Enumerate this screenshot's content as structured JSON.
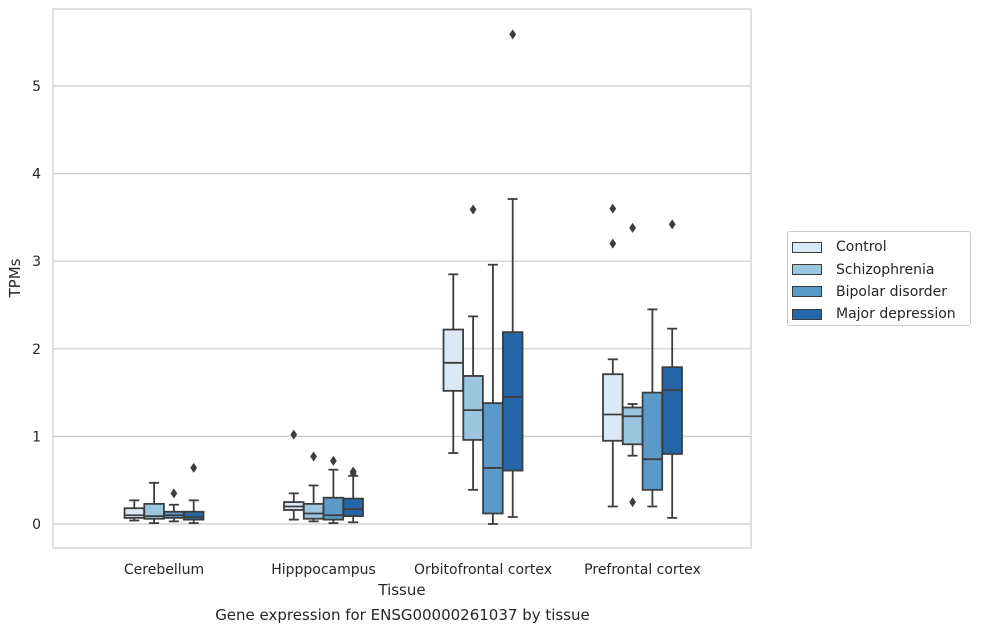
{
  "chart_data": {
    "type": "box",
    "title": "Gene expression for ENSG00000261037 by tissue",
    "xlabel": "Tissue",
    "ylabel": "TPMs",
    "ylim": [
      -0.27,
      5.9
    ],
    "yticks": [
      0,
      1,
      2,
      3,
      4,
      5
    ],
    "grid": "horizontal",
    "legend_position": "right",
    "categories": [
      "Cerebellum",
      "Hipppocampus",
      "Orbitofrontal cortex",
      "Prefrontal cortex"
    ],
    "series": [
      {
        "name": "Control",
        "color": "#dbe8f5",
        "boxes": [
          {
            "whislo": 0.04,
            "q1": 0.07,
            "med": 0.1,
            "q3": 0.18,
            "whishi": 0.27,
            "fliers": []
          },
          {
            "whislo": 0.05,
            "q1": 0.16,
            "med": 0.2,
            "q3": 0.25,
            "whishi": 0.35,
            "fliers": [
              1.02
            ]
          },
          {
            "whislo": 0.81,
            "q1": 1.52,
            "med": 1.84,
            "q3": 2.22,
            "whishi": 2.85,
            "fliers": []
          },
          {
            "whislo": 0.2,
            "q1": 0.95,
            "med": 1.25,
            "q3": 1.71,
            "whishi": 1.88,
            "fliers": [
              3.2,
              3.6
            ]
          }
        ]
      },
      {
        "name": "Schizophrenia",
        "color": "#9ac6df",
        "boxes": [
          {
            "whislo": 0.01,
            "q1": 0.06,
            "med": 0.09,
            "q3": 0.23,
            "whishi": 0.47,
            "fliers": []
          },
          {
            "whislo": 0.03,
            "q1": 0.06,
            "med": 0.12,
            "q3": 0.23,
            "whishi": 0.44,
            "fliers": [
              0.77
            ]
          },
          {
            "whislo": 0.39,
            "q1": 0.96,
            "med": 1.3,
            "q3": 1.69,
            "whishi": 2.37,
            "fliers": [
              3.59
            ]
          },
          {
            "whislo": 0.78,
            "q1": 0.91,
            "med": 1.23,
            "q3": 1.33,
            "whishi": 1.37,
            "fliers": [
              3.38,
              0.25
            ]
          }
        ]
      },
      {
        "name": "Bipolar disorder",
        "color": "#5a9ac8",
        "boxes": [
          {
            "whislo": 0.03,
            "q1": 0.07,
            "med": 0.1,
            "q3": 0.14,
            "whishi": 0.22,
            "fliers": [
              0.35
            ]
          },
          {
            "whislo": 0.01,
            "q1": 0.05,
            "med": 0.1,
            "q3": 0.3,
            "whishi": 0.62,
            "fliers": [
              0.72
            ]
          },
          {
            "whislo": 0.0,
            "q1": 0.12,
            "med": 0.64,
            "q3": 1.38,
            "whishi": 2.96,
            "fliers": []
          },
          {
            "whislo": 0.2,
            "q1": 0.39,
            "med": 0.74,
            "q3": 1.5,
            "whishi": 2.45,
            "fliers": []
          }
        ]
      },
      {
        "name": "Major depression",
        "color": "#2466a8",
        "boxes": [
          {
            "whislo": 0.01,
            "q1": 0.05,
            "med": 0.08,
            "q3": 0.14,
            "whishi": 0.27,
            "fliers": [
              0.64
            ]
          },
          {
            "whislo": 0.02,
            "q1": 0.09,
            "med": 0.17,
            "q3": 0.29,
            "whishi": 0.55,
            "fliers": [
              0.6,
              0.58
            ]
          },
          {
            "whislo": 0.08,
            "q1": 0.61,
            "med": 1.45,
            "q3": 2.19,
            "whishi": 3.71,
            "fliers": [
              5.59
            ]
          },
          {
            "whislo": 0.07,
            "q1": 0.8,
            "med": 1.53,
            "q3": 1.79,
            "whishi": 2.23,
            "fliers": [
              3.42
            ]
          }
        ]
      }
    ]
  }
}
